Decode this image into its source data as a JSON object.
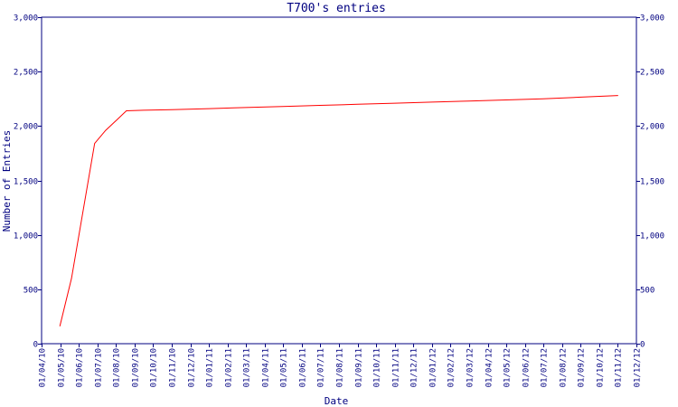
{
  "chart_data": {
    "type": "line",
    "title": "T700's entries",
    "xlabel": "Date",
    "ylabel": "Number of Entries",
    "ylim": [
      0,
      3000
    ],
    "yticks": [
      0,
      500,
      1000,
      1500,
      2000,
      2500,
      3000
    ],
    "ytick_labels": [
      "0",
      "500",
      "1,000",
      "1,500",
      "2,000",
      "2,500",
      "3,000"
    ],
    "xlim": [
      "2010-04-01",
      "2012-12-01"
    ],
    "xtick_labels": [
      "01/04/10",
      "01/05/10",
      "01/06/10",
      "01/07/10",
      "01/08/10",
      "01/09/10",
      "01/10/10",
      "01/11/10",
      "01/12/10",
      "01/01/11",
      "01/02/11",
      "01/03/11",
      "01/04/11",
      "01/05/11",
      "01/06/11",
      "01/07/11",
      "01/08/11",
      "01/09/11",
      "01/10/11",
      "01/11/11",
      "01/12/11",
      "01/01/12",
      "01/02/12",
      "01/03/12",
      "01/04/12",
      "01/05/12",
      "01/06/12",
      "01/07/12",
      "01/08/12",
      "01/09/12",
      "01/10/12",
      "01/11/12",
      "01/12/12"
    ],
    "series": [
      {
        "color": "#ff0000",
        "x": [
          "2010-05-01",
          "2010-05-20",
          "2010-06-27",
          "2010-07-15",
          "2010-08-03",
          "2010-08-18",
          "2010-09-15",
          "2010-11-01",
          "2011-01-01",
          "2011-03-01",
          "2011-05-01",
          "2011-07-01",
          "2011-09-01",
          "2011-11-01",
          "2012-01-01",
          "2012-03-01",
          "2012-05-01",
          "2012-07-01",
          "2012-09-01",
          "2012-11-01"
        ],
        "y": [
          160,
          600,
          1840,
          1960,
          2060,
          2140,
          2145,
          2150,
          2160,
          2170,
          2180,
          2190,
          2200,
          2210,
          2220,
          2230,
          2240,
          2250,
          2265,
          2280
        ]
      }
    ]
  }
}
